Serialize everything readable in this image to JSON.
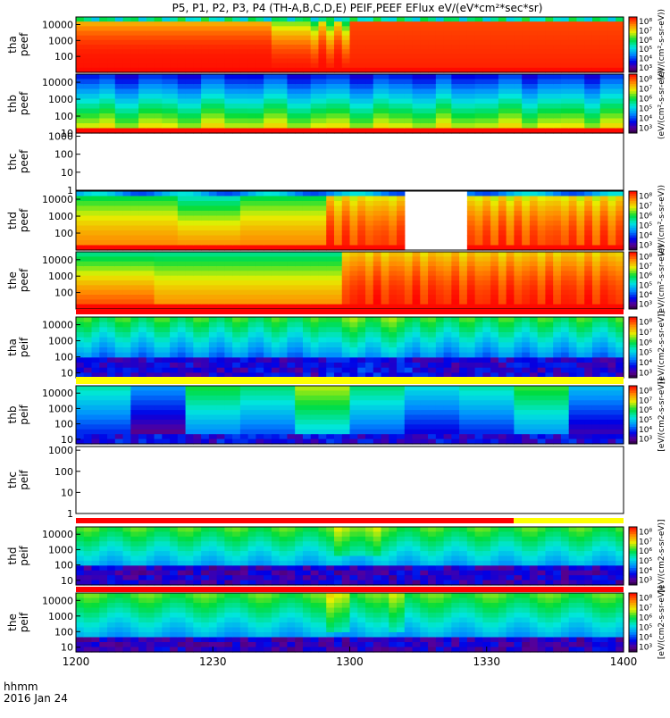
{
  "chart_data": {
    "type": "heatmap",
    "title": "P5, P1, P2, P3, P4 (TH-A,B,C,D,E) PEIF,PEEF EFlux eV/(eV*cm²*sec*sr)",
    "x_ticks": [
      "1200",
      "1230",
      "1300",
      "1330",
      "1400"
    ],
    "x_range": [
      "1200",
      "1400"
    ],
    "x_label_line1": "hhmm",
    "x_label_line2": "2016 Jan 24",
    "y_scale": "log",
    "colorbar_scale": "log",
    "colorbar_ticks": [
      "10³",
      "10⁴",
      "10⁵",
      "10⁶",
      "10⁷",
      "10⁸"
    ],
    "colorbar_label_electron": "(eV/(cm²-s-sr-eV))",
    "colorbar_label_ion": "[eV/(cm2-s-sr-eV)]",
    "panels": [
      {
        "probe": "tha",
        "quantity": "peef",
        "y_ticks": [
          "100",
          "1000",
          "10000"
        ],
        "y_range": [
          10,
          30000
        ],
        "state": "filled",
        "description": "Intense red flux across most energies; small hot plasma layer at low energy around 1245-1305"
      },
      {
        "probe": "thb",
        "quantity": "peef",
        "y_ticks": [
          "10",
          "100",
          "1000",
          "10000"
        ],
        "y_range": [
          10,
          30000
        ],
        "state": "filled",
        "description": "Yellow-orange low-energy band, green/cyan mid, blue at high energies"
      },
      {
        "probe": "thc",
        "quantity": "peef",
        "y_ticks": [
          "1",
          "10",
          "100",
          "1000"
        ],
        "y_range": [
          1,
          1500
        ],
        "state": "empty"
      },
      {
        "probe": "thd",
        "quantity": "peef",
        "y_ticks": [
          "100",
          "1000",
          "10000"
        ],
        "y_range": [
          10,
          30000
        ],
        "state": "filled",
        "description": "Red/orange flux, enhancement after ~1315, data gap ~1340-1350"
      },
      {
        "probe": "the",
        "quantity": "peef",
        "y_ticks": [
          "100",
          "1000",
          "10000"
        ],
        "y_range": [
          10,
          30000
        ],
        "state": "filled",
        "description": "Orange/yellow early, strong red flux after ~1315"
      },
      {
        "probe": "tha",
        "quantity": "peif",
        "y_ticks": [
          "10",
          "100",
          "1000",
          "10000"
        ],
        "y_range": [
          5,
          30000
        ],
        "state": "filled",
        "description": "Green at high energy, blue and dark purple at low energy"
      },
      {
        "probe": "thb",
        "quantity": "peif",
        "y_ticks": [
          "10",
          "100",
          "1000",
          "10000"
        ],
        "y_range": [
          5,
          30000
        ],
        "state": "filled",
        "description": "Block structure of yellow/green/blue"
      },
      {
        "probe": "thc",
        "quantity": "peif",
        "y_ticks": [
          "1",
          "10",
          "100",
          "1000"
        ],
        "y_range": [
          1,
          1500
        ],
        "state": "empty"
      },
      {
        "probe": "thd",
        "quantity": "peif",
        "y_ticks": [
          "10",
          "100",
          "1000",
          "10000"
        ],
        "y_range": [
          5,
          30000
        ],
        "state": "filled",
        "description": "Green/cyan high energy, blue/purple low energy"
      },
      {
        "probe": "the",
        "quantity": "peif",
        "y_ticks": [
          "10",
          "100",
          "1000",
          "10000"
        ],
        "y_range": [
          5,
          30000
        ],
        "state": "filled",
        "description": "Green/cyan high energy, blue/purple low energy, brief enhancement near 1300"
      }
    ]
  }
}
